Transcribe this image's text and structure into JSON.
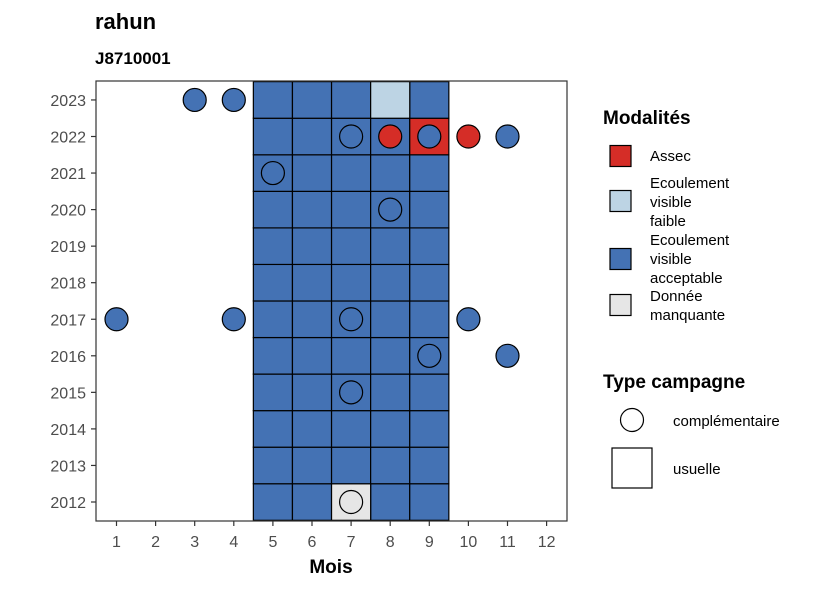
{
  "chart_data": {
    "type": "heatmap",
    "title": "rahun",
    "subtitle": "J8710001",
    "xlabel": "Mois",
    "ylabel": "",
    "x_ticks": [
      1,
      2,
      3,
      4,
      5,
      6,
      7,
      8,
      9,
      10,
      11,
      12
    ],
    "y_ticks": [
      2012,
      2013,
      2014,
      2015,
      2016,
      2017,
      2018,
      2019,
      2020,
      2021,
      2022,
      2023
    ],
    "colors": {
      "Assec": "#d52d27",
      "Ecoulement visible faible": "#bdd4e4",
      "Ecoulement visible acceptable": "#4472b4",
      "Donnée manquante": "#e6e6e6"
    },
    "usual_campaigns": [
      {
        "year": 2012,
        "months": [
          5,
          6,
          8,
          9
        ],
        "state": "Ecoulement visible acceptable"
      },
      {
        "year": 2012,
        "months": [
          7
        ],
        "state": "Donnée manquante"
      },
      {
        "year": 2013,
        "months": [
          5,
          6,
          7,
          8,
          9
        ],
        "state": "Ecoulement visible acceptable"
      },
      {
        "year": 2014,
        "months": [
          5,
          6,
          7,
          8,
          9
        ],
        "state": "Ecoulement visible acceptable"
      },
      {
        "year": 2015,
        "months": [
          5,
          6,
          7,
          8,
          9
        ],
        "state": "Ecoulement visible acceptable"
      },
      {
        "year": 2016,
        "months": [
          5,
          6,
          7,
          8,
          9
        ],
        "state": "Ecoulement visible acceptable"
      },
      {
        "year": 2017,
        "months": [
          5,
          6,
          7,
          8,
          9
        ],
        "state": "Ecoulement visible acceptable"
      },
      {
        "year": 2018,
        "months": [
          5,
          6,
          7,
          8,
          9
        ],
        "state": "Ecoulement visible acceptable"
      },
      {
        "year": 2019,
        "months": [
          5,
          6,
          7,
          8,
          9
        ],
        "state": "Ecoulement visible acceptable"
      },
      {
        "year": 2020,
        "months": [
          5,
          6,
          7,
          8,
          9
        ],
        "state": "Ecoulement visible acceptable"
      },
      {
        "year": 2021,
        "months": [
          5,
          6,
          7,
          8,
          9
        ],
        "state": "Ecoulement visible acceptable"
      },
      {
        "year": 2022,
        "months": [
          5,
          6,
          7,
          8
        ],
        "state": "Ecoulement visible acceptable"
      },
      {
        "year": 2022,
        "months": [
          9
        ],
        "state": "Assec"
      },
      {
        "year": 2023,
        "months": [
          5,
          6,
          7,
          9
        ],
        "state": "Ecoulement visible acceptable"
      },
      {
        "year": 2023,
        "months": [
          8
        ],
        "state": "Ecoulement visible faible"
      }
    ],
    "complementary_campaigns": [
      {
        "year": 2012,
        "month": 7,
        "state": "Donnée manquante"
      },
      {
        "year": 2015,
        "month": 7,
        "state": "Ecoulement visible acceptable"
      },
      {
        "year": 2016,
        "month": 9,
        "state": "Ecoulement visible acceptable"
      },
      {
        "year": 2016,
        "month": 11,
        "state": "Ecoulement visible acceptable"
      },
      {
        "year": 2017,
        "month": 1,
        "state": "Ecoulement visible acceptable"
      },
      {
        "year": 2017,
        "month": 4,
        "state": "Ecoulement visible acceptable"
      },
      {
        "year": 2017,
        "month": 7,
        "state": "Ecoulement visible acceptable"
      },
      {
        "year": 2017,
        "month": 10,
        "state": "Ecoulement visible acceptable"
      },
      {
        "year": 2020,
        "month": 8,
        "state": "Ecoulement visible acceptable"
      },
      {
        "year": 2021,
        "month": 5,
        "state": "Ecoulement visible acceptable"
      },
      {
        "year": 2022,
        "month": 7,
        "state": "Ecoulement visible acceptable"
      },
      {
        "year": 2022,
        "month": 8,
        "state": "Assec"
      },
      {
        "year": 2022,
        "month": 9,
        "state": "Ecoulement visible acceptable"
      },
      {
        "year": 2022,
        "month": 10,
        "state": "Assec"
      },
      {
        "year": 2022,
        "month": 11,
        "state": "Ecoulement visible acceptable"
      },
      {
        "year": 2023,
        "month": 3,
        "state": "Ecoulement visible acceptable"
      },
      {
        "year": 2023,
        "month": 4,
        "state": "Ecoulement visible acceptable"
      }
    ],
    "legend_modalites": {
      "title": "Modalités",
      "items": [
        {
          "lines": [
            "Assec"
          ],
          "state": "Assec"
        },
        {
          "lines": [
            "Ecoulement",
            "visible",
            "faible"
          ],
          "state": "Ecoulement visible faible"
        },
        {
          "lines": [
            "Ecoulement",
            "visible",
            "acceptable"
          ],
          "state": "Ecoulement visible acceptable"
        },
        {
          "lines": [
            "Donnée",
            "manquante"
          ],
          "state": "Donnée manquante"
        }
      ]
    },
    "legend_type": {
      "title": "Type campagne",
      "items": [
        {
          "label": "complémentaire",
          "shape": "circle"
        },
        {
          "label": "usuelle",
          "shape": "square"
        }
      ]
    },
    "legend_position": "right",
    "grid": false
  }
}
